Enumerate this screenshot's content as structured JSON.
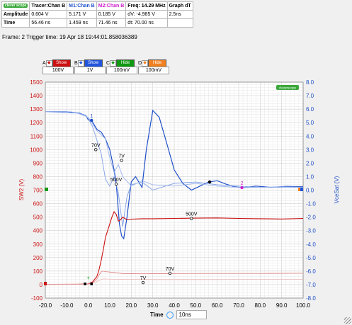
{
  "table": {
    "logo": "clever scope",
    "headers": [
      "Tracer:Chan B",
      "M1:Chan B",
      "M2:Chan B",
      "Freq: 14.29 MHz",
      "Graph dT"
    ],
    "header_colors": [
      "#000000",
      "#2255cc",
      "#cc22cc",
      "#000000",
      "#000000"
    ],
    "rows": [
      {
        "label": "Amplitude",
        "cells": [
          "0.604 V",
          "5.171 V",
          "0.185 V",
          "dV: -4.985 V",
          "2.5ns"
        ]
      },
      {
        "label": "Time",
        "cells": [
          "56.46 ns",
          "1.459 ns",
          "71.46 ns",
          "dt: 70.00 ns",
          ""
        ]
      }
    ]
  },
  "frame_info": "Frame: 2   Trigger time: 19 Apr 18 19:44:01.858036389",
  "channels": [
    {
      "letter": "A",
      "button": "Show",
      "value": "100V",
      "color": "#cc1111"
    },
    {
      "letter": "B",
      "button": "Show",
      "value": "1V",
      "color": "#2255dd"
    },
    {
      "letter": "C",
      "button": "Hide",
      "value": "100mV",
      "color": "#119911"
    },
    {
      "letter": "D",
      "button": "Hide",
      "value": "100mV",
      "color": "#f08020"
    }
  ],
  "timebase": {
    "label": "Time",
    "value": "10ns"
  },
  "chart_data": {
    "type": "line",
    "x_ticks": [
      "-20.0",
      "-10.0",
      "0.0",
      "10.0",
      "20.0",
      "30.0",
      "40.0",
      "50.0",
      "60.0",
      "70.0",
      "80.0",
      "90.0",
      "100.0"
    ],
    "y_left_ticks": [
      "1500",
      "1400",
      "1300",
      "1200",
      "1100",
      "1000",
      "900",
      "800",
      "700",
      "600",
      "500",
      "400",
      "300",
      "200",
      "100",
      "0",
      "-100"
    ],
    "y_right_ticks": [
      "8.0",
      "7.0",
      "6.0",
      "5.0",
      "4.0",
      "3.0",
      "2.0",
      "1.0",
      "0.0",
      "-1.0",
      "-2.0",
      "-3.0",
      "-4.0",
      "-5.0",
      "-6.0",
      "-7.0",
      "-8.0"
    ],
    "xlim": [
      -20,
      100
    ],
    "ylim_left": [
      -100,
      1500
    ],
    "ylim_right": [
      -8,
      8
    ],
    "ylabel_left": "SW2 (V)",
    "ylabel_right": "VceSat (V)",
    "xlabel": "Time",
    "series": [
      {
        "axis": "right",
        "color": "#1f4fc8",
        "width": 1.2,
        "x": [
          -20,
          -10,
          -4,
          -1,
          0,
          1.5,
          2.5,
          4,
          6,
          8,
          10,
          12,
          13,
          14.5,
          15.5,
          16.5,
          18,
          20,
          22,
          25,
          27,
          30,
          33,
          37,
          40,
          44,
          48,
          52,
          56,
          60,
          64,
          68,
          72,
          78,
          85,
          92,
          100
        ],
        "y": [
          5.8,
          5.8,
          5.7,
          5.5,
          5.2,
          5.17,
          4.9,
          4.5,
          4.3,
          3.8,
          3.0,
          1.5,
          0.5,
          -2.5,
          -3.4,
          -3.6,
          -2.0,
          0.6,
          1.0,
          0.2,
          3.0,
          5.9,
          5.4,
          3.2,
          1.5,
          0.5,
          0.0,
          0.3,
          0.6,
          0.7,
          0.45,
          0.25,
          0.18,
          0.3,
          0.2,
          0.28,
          0.25
        ]
      },
      {
        "axis": "right",
        "color": "#7f9fe8",
        "width": 0.9,
        "x": [
          -20,
          -8,
          -2,
          0,
          2,
          4,
          6,
          8,
          10,
          12,
          14,
          16,
          18,
          20,
          25,
          30,
          40,
          50,
          60,
          70,
          80,
          90,
          100
        ],
        "y": [
          5.8,
          5.8,
          5.6,
          5.3,
          4.7,
          3.7,
          2.7,
          0.8,
          0.3,
          1.0,
          -0.2,
          -2.7,
          -0.5,
          0.4,
          0.6,
          0.0,
          0.5,
          0.6,
          0.4,
          0.3,
          0.2,
          0.25,
          0.22
        ]
      },
      {
        "axis": "right",
        "color": "#9bb4ec",
        "width": 0.9,
        "x": [
          -20,
          -5,
          0,
          4,
          8,
          10,
          12,
          14,
          16,
          20,
          25,
          30,
          40,
          50,
          60,
          70,
          80,
          100
        ],
        "y": [
          5.8,
          5.7,
          5.4,
          4.4,
          3.8,
          2.4,
          1.3,
          1.9,
          1.0,
          0.3,
          0.7,
          0.4,
          0.3,
          0.5,
          0.3,
          0.2,
          0.2,
          0.2
        ]
      },
      {
        "axis": "left",
        "color": "#cc1111",
        "width": 1.1,
        "x": [
          -20,
          -5,
          0,
          2,
          4,
          5,
          6,
          7,
          8,
          10,
          11,
          12,
          13,
          14,
          15,
          16,
          17,
          18,
          20,
          25,
          30,
          40,
          50,
          60,
          70,
          80,
          90,
          100
        ],
        "y": [
          2,
          3,
          5,
          20,
          60,
          110,
          180,
          260,
          350,
          450,
          500,
          540,
          520,
          470,
          480,
          500,
          490,
          480,
          485,
          488,
          488,
          490,
          492,
          494,
          490,
          488,
          486,
          490
        ]
      },
      {
        "axis": "left",
        "color": "#e08080",
        "width": 0.8,
        "x": [
          -20,
          -2,
          0,
          2,
          4,
          5,
          6,
          7,
          8,
          12,
          16,
          25,
          40,
          60,
          80,
          100
        ],
        "y": [
          2,
          3,
          4,
          12,
          40,
          70,
          95,
          100,
          96,
          90,
          82,
          80,
          82,
          83,
          83,
          84
        ]
      },
      {
        "axis": "left",
        "color": "#eab0b0",
        "width": 0.7,
        "x": [
          -20,
          0,
          3,
          5,
          7,
          10,
          15,
          25,
          40,
          60,
          80,
          100
        ],
        "y": [
          2,
          3,
          14,
          32,
          42,
          40,
          38,
          37,
          37,
          37,
          38,
          38
        ]
      }
    ],
    "annotations": [
      {
        "text": "1",
        "x": 1.5,
        "y": 5.17,
        "axis": "right",
        "color": "#1f4fc8",
        "marker": true
      },
      {
        "text": "2",
        "x": 71.5,
        "y": 0.185,
        "axis": "right",
        "color": "#cc22cc",
        "marker": true
      },
      {
        "text": "70V",
        "x": 3.5,
        "y": 3.0,
        "axis": "right",
        "color": "#000000",
        "marker": true
      },
      {
        "text": "7V",
        "x": 15.5,
        "y": 2.2,
        "axis": "right",
        "color": "#000000",
        "marker": true
      },
      {
        "text": "500V",
        "x": 13.0,
        "y": 0.45,
        "axis": "right",
        "color": "#000000",
        "marker": true
      },
      {
        "text": "500V",
        "x": 48.0,
        "y": 490,
        "axis": "left",
        "color": "#000000",
        "marker": true
      },
      {
        "text": "70V",
        "x": 38.0,
        "y": 84,
        "axis": "left",
        "color": "#000000",
        "marker": true
      },
      {
        "text": "7V",
        "x": 25.5,
        "y": 15,
        "axis": "left",
        "color": "#000000",
        "marker": true
      }
    ],
    "tracer_dot": {
      "x": 56.5,
      "y": 0.604,
      "axis": "right",
      "color": "#000000"
    },
    "markers_small": [
      {
        "x": -1.5,
        "y": 5,
        "axis": "left"
      },
      {
        "x": 1.5,
        "y": 5,
        "axis": "left"
      }
    ],
    "legend_logo": "cleverscope",
    "grid": true
  }
}
